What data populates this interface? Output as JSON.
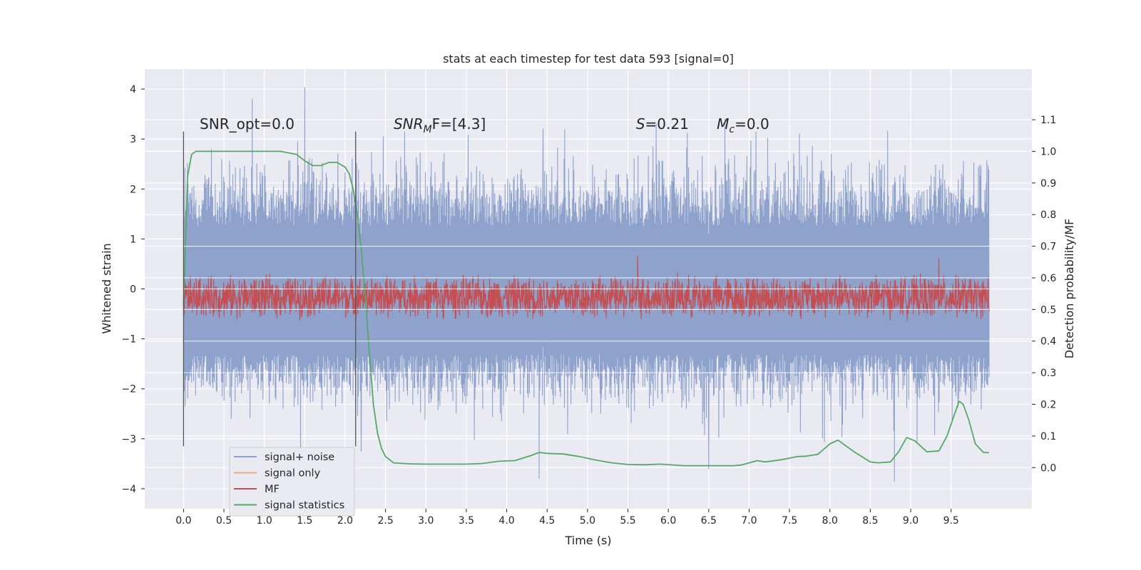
{
  "chart_data": {
    "type": "line",
    "title": "stats at each timestep for test data 593 [signal=0]",
    "xlabel": "Time (s)",
    "ylabel": "Whitened strain",
    "y2label": "Detection probability/MF",
    "xlim": [
      -0.48,
      10.5
    ],
    "ylim": [
      -4.4,
      4.4
    ],
    "y2lim": [
      -0.13,
      1.26
    ],
    "xticks": [
      0.0,
      0.5,
      1.0,
      1.5,
      2.0,
      2.5,
      3.0,
      3.5,
      4.0,
      4.5,
      5.0,
      5.5,
      6.0,
      6.5,
      7.0,
      7.5,
      8.0,
      8.5,
      9.0,
      9.5
    ],
    "xtick_labels": [
      "0.0",
      "0.5",
      "1.0",
      "1.5",
      "2.0",
      "2.5",
      "3.0",
      "3.5",
      "4.0",
      "4.5",
      "5.0",
      "5.5",
      "6.0",
      "6.5",
      "7.0",
      "7.5",
      "8.0",
      "8.5",
      "9.0",
      "9.5"
    ],
    "yticks": [
      4,
      3,
      2,
      1,
      0,
      -1,
      -2,
      -3,
      -4
    ],
    "ytick_labels": [
      "4",
      "3",
      "2",
      "1",
      "0",
      "−1",
      "−2",
      "−3",
      "−4"
    ],
    "y2ticks": [
      1.1,
      1.0,
      0.9,
      0.8,
      0.7,
      0.6,
      0.5,
      0.4,
      0.3,
      0.2,
      0.1,
      0.0
    ],
    "y2tick_labels": [
      "1.1",
      "1.0",
      "0.9",
      "0.8",
      "0.7",
      "0.6",
      "0.5",
      "0.4",
      "0.3",
      "0.2",
      "0.1",
      "0.0"
    ],
    "grid": true,
    "legend_position": "lower-left",
    "vertical_markers": [
      {
        "x": 0.0,
        "ymin": -3.15,
        "ymax": 3.15
      },
      {
        "x": 2.13,
        "ymin": -3.15,
        "ymax": 3.15
      }
    ],
    "annotations": [
      {
        "x": 0.2,
        "y": 3.2,
        "text": "SNR_opt=0.0"
      },
      {
        "x": 2.6,
        "y": 3.2,
        "text": "SNR_MF=[4.3]",
        "main": "SNR",
        "sub": "M",
        "tail": "F=[4.3]"
      },
      {
        "x": 5.6,
        "y": 3.2,
        "text": "S=0.21",
        "main": "S",
        "tail": "=0.21"
      },
      {
        "x": 6.6,
        "y": 3.2,
        "text": "M_c=0.0",
        "main": "M",
        "sub": "c",
        "tail": "=0.0"
      }
    ],
    "series": [
      {
        "name": "signal+ noise",
        "color": "#8ea2cc",
        "kind": "noise-band",
        "x_range": [
          0.0,
          9.97
        ],
        "band": {
          "upper_mean": 1.25,
          "upper_spread": 1.1,
          "lower_mean": -1.3,
          "lower_spread": 0.9
        },
        "peaks": [
          [
            0.85,
            3.8
          ],
          [
            1.5,
            4.03
          ],
          [
            4.4,
            -3.8
          ],
          [
            6.5,
            -3.6
          ],
          [
            8.8,
            -3.85
          ],
          [
            6.7,
            3.4
          ],
          [
            5.85,
            3.3
          ],
          [
            4.45,
            3.2
          ],
          [
            2.2,
            -3.25
          ],
          [
            1.45,
            -3.5
          ]
        ]
      },
      {
        "name": "signal only",
        "color": "#e8a98a",
        "kind": "line",
        "x": [
          0.0,
          9.97
        ],
        "y": [
          0.0,
          0.0
        ]
      },
      {
        "name": "MF",
        "color": "#c44e52",
        "kind": "noise-band",
        "axis": "right",
        "x_range": [
          0.0,
          9.97
        ],
        "band": {
          "center": 0.54,
          "spread": 0.05
        },
        "peaks": [
          [
            5.62,
            0.67
          ],
          [
            9.35,
            0.66
          ]
        ]
      },
      {
        "name": "signal statistics",
        "color": "#55a868",
        "kind": "line",
        "axis": "right",
        "x": [
          0.0,
          0.05,
          0.1,
          0.15,
          0.2,
          0.4,
          0.6,
          0.8,
          1.0,
          1.2,
          1.4,
          1.5,
          1.6,
          1.7,
          1.8,
          1.9,
          2.0,
          2.05,
          2.1,
          2.15,
          2.2,
          2.25,
          2.3,
          2.35,
          2.4,
          2.45,
          2.5,
          2.55,
          2.6,
          2.8,
          3.0,
          3.2,
          3.5,
          3.7,
          3.9,
          4.1,
          4.3,
          4.4,
          4.5,
          4.7,
          4.9,
          5.1,
          5.3,
          5.5,
          5.7,
          5.9,
          6.2,
          6.5,
          6.8,
          6.9,
          7.0,
          7.1,
          7.2,
          7.4,
          7.6,
          7.7,
          7.85,
          8.0,
          8.1,
          8.3,
          8.5,
          8.6,
          8.75,
          8.85,
          8.95,
          9.05,
          9.2,
          9.35,
          9.45,
          9.55,
          9.6,
          9.65,
          9.72,
          9.8,
          9.9,
          9.97
        ],
        "y": [
          0.51,
          0.92,
          0.99,
          1.0,
          1.0,
          1.0,
          1.0,
          1.0,
          1.0,
          1.0,
          0.99,
          0.97,
          0.955,
          0.955,
          0.965,
          0.965,
          0.95,
          0.93,
          0.88,
          0.8,
          0.69,
          0.54,
          0.36,
          0.2,
          0.11,
          0.06,
          0.035,
          0.025,
          0.015,
          0.012,
          0.011,
          0.011,
          0.011,
          0.013,
          0.02,
          0.022,
          0.038,
          0.048,
          0.045,
          0.043,
          0.035,
          0.024,
          0.015,
          0.01,
          0.009,
          0.011,
          0.006,
          0.006,
          0.006,
          0.008,
          0.015,
          0.022,
          0.018,
          0.025,
          0.035,
          0.036,
          0.042,
          0.075,
          0.087,
          0.05,
          0.018,
          0.015,
          0.018,
          0.05,
          0.095,
          0.085,
          0.05,
          0.053,
          0.1,
          0.175,
          0.21,
          0.2,
          0.15,
          0.075,
          0.048,
          0.047
        ]
      }
    ]
  }
}
